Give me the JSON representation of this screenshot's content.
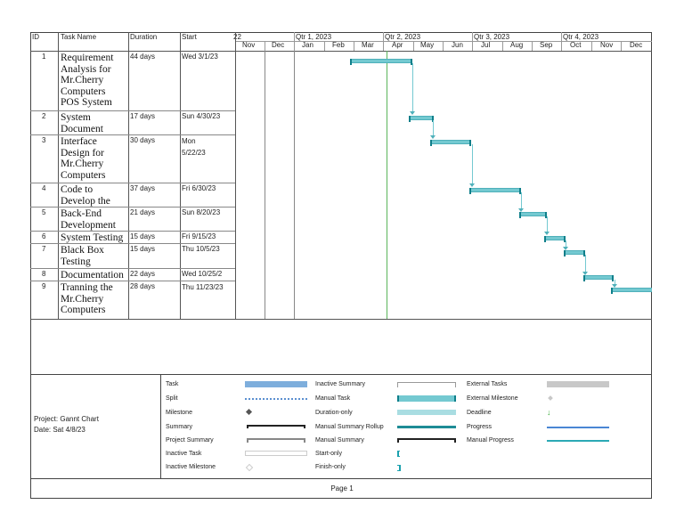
{
  "columns": {
    "id": "ID",
    "task_name": "Task Name",
    "duration": "Duration",
    "start": "Start"
  },
  "timescale": {
    "top": [
      {
        "label": "22"
      },
      {
        "label": "Qtr 1, 2023"
      },
      {
        "label": "Qtr 2, 2023"
      },
      {
        "label": "Qtr 3, 2023"
      },
      {
        "label": "Qtr 4, 2023"
      }
    ],
    "months": [
      "Nov",
      "Dec",
      "Jan",
      "Feb",
      "Mar",
      "Apr",
      "May",
      "Jun",
      "Jul",
      "Aug",
      "Sep",
      "Oct",
      "Nov",
      "Dec"
    ]
  },
  "tasks": [
    {
      "id": "1",
      "name": "Requirement Analysis for Mr.Cherry Computers POS System",
      "duration": "44 days",
      "start": "Wed 3/1/23"
    },
    {
      "id": "2",
      "name": "System Document",
      "duration": "17 days",
      "start": "Sun 4/30/23"
    },
    {
      "id": "3",
      "name": "Interface Design for Mr.Cherry Computers",
      "duration": "30 days",
      "start": "Mon 5/22/23"
    },
    {
      "id": "4",
      "name": "Code to Develop the",
      "duration": "37 days",
      "start": "Fri 6/30/23"
    },
    {
      "id": "5",
      "name": "Back-End Development",
      "duration": "21 days",
      "start": "Sun 8/20/23"
    },
    {
      "id": "6",
      "name": "System Testing",
      "duration": "15 days",
      "start": "Fri 9/15/23"
    },
    {
      "id": "7",
      "name": "Black Box Testing",
      "duration": "15 days",
      "start": "Thu 10/5/23"
    },
    {
      "id": "8",
      "name": "Documentation",
      "duration": "22 days",
      "start": "Wed 10/25/2"
    },
    {
      "id": "9",
      "name": "Tranning the Mr.Cherry Computers",
      "duration": "28 days",
      "start": "Thu 11/23/23"
    }
  ],
  "footer": {
    "project": "Project: Gannt Chart",
    "date": "Date: Sat 4/8/23",
    "page": "Page 1"
  },
  "legend": {
    "col1": [
      "Task",
      "Split",
      "Milestone",
      "Summary",
      "Project Summary",
      "Inactive Task",
      "Inactive Milestone"
    ],
    "col2": [
      "Inactive Summary",
      "Manual Task",
      "Duration-only",
      "Manual Summary Rollup",
      "Manual Summary",
      "Start-only",
      "Finish-only"
    ],
    "col3": [
      "External Tasks",
      "External Milestone",
      "Deadline",
      "Progress",
      "Manual Progress"
    ]
  },
  "colors": {
    "bar": "#74c9d1",
    "bar_dark": "#0f7f8a",
    "today_line": "#5bb55b",
    "task_legend": "#7eaedc"
  }
}
